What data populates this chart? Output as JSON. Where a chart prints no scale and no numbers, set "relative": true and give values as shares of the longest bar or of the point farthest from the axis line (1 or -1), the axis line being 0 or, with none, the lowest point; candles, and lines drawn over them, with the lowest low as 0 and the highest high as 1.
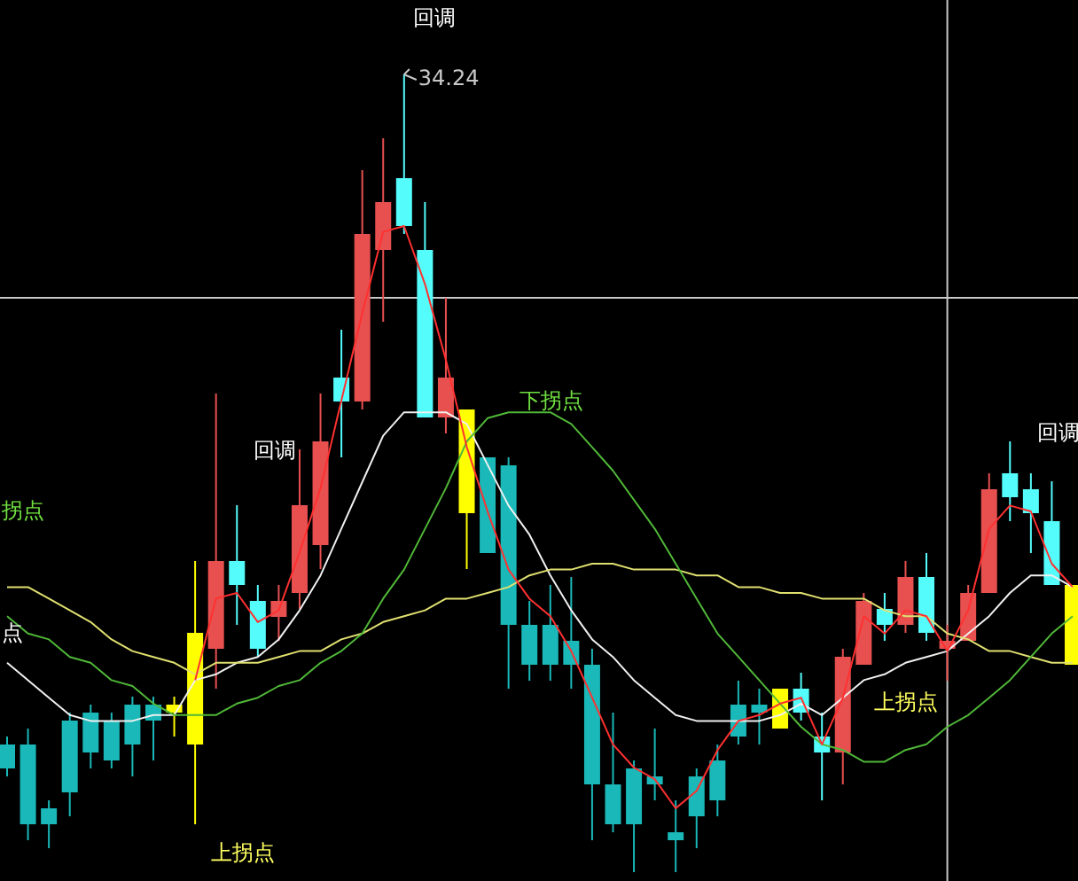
{
  "chart_data": [
    {
      "type": "candlestick",
      "relative": true,
      "categories": [
        null,
        null,
        null,
        null,
        null,
        null,
        null,
        null,
        null,
        null,
        null,
        null,
        null,
        null,
        null,
        null,
        null,
        null,
        null,
        null,
        null,
        null,
        null,
        null,
        null,
        null,
        null,
        null,
        null,
        null,
        null,
        null,
        null,
        null,
        null,
        null,
        null,
        null,
        null,
        null,
        null,
        null,
        null,
        null,
        null,
        null,
        null,
        null,
        null,
        null,
        null,
        null
      ],
      "ohlc": [
        [
          0.16,
          0.17,
          0.12,
          0.13
        ],
        [
          0.16,
          0.18,
          0.04,
          0.06
        ],
        [
          0.08,
          0.09,
          0.03,
          0.06
        ],
        [
          0.19,
          0.2,
          0.07,
          0.1
        ],
        [
          0.2,
          0.21,
          0.13,
          0.15
        ],
        [
          0.19,
          0.2,
          0.13,
          0.14
        ],
        [
          0.21,
          0.22,
          0.12,
          0.16
        ],
        [
          0.21,
          0.22,
          0.14,
          0.19
        ],
        [
          0.21,
          0.22,
          0.17,
          0.2
        ],
        [
          0.3,
          0.39,
          0.06,
          0.16
        ],
        [
          0.28,
          0.6,
          0.23,
          0.39
        ],
        [
          0.39,
          0.46,
          0.31,
          0.36
        ],
        [
          0.34,
          0.36,
          0.27,
          0.28
        ],
        [
          0.32,
          0.36,
          0.29,
          0.34
        ],
        [
          0.35,
          0.53,
          0.33,
          0.46
        ],
        [
          0.41,
          0.6,
          0.38,
          0.54
        ],
        [
          0.62,
          0.68,
          0.52,
          0.59
        ],
        [
          0.59,
          0.88,
          0.58,
          0.8
        ],
        [
          0.78,
          0.92,
          0.69,
          0.84
        ],
        [
          0.87,
          1,
          0.8,
          0.81
        ],
        [
          0.78,
          0.84,
          0.57,
          0.57
        ],
        [
          0.57,
          0.72,
          0.55,
          0.62
        ],
        [
          0.58,
          0.58,
          0.38,
          0.45
        ],
        [
          0.52,
          0.52,
          0.4,
          0.4
        ],
        [
          0.51,
          0.52,
          0.23,
          0.31
        ],
        [
          0.31,
          0.34,
          0.24,
          0.26
        ],
        [
          0.31,
          0.36,
          0.24,
          0.26
        ],
        [
          0.29,
          0.37,
          0.23,
          0.26
        ],
        [
          0.26,
          0.28,
          0.04,
          0.11
        ],
        [
          0.11,
          0.2,
          0.05,
          0.06
        ],
        [
          0.13,
          0.14,
          0,
          0.06
        ],
        [
          0.12,
          0.18,
          0.09,
          0.11
        ],
        [
          0.05,
          0.09,
          0,
          0.04
        ],
        [
          0.12,
          0.13,
          0.03,
          0.07
        ],
        [
          0.14,
          0.16,
          0.07,
          0.09
        ],
        [
          0.21,
          0.24,
          0.16,
          0.17
        ],
        [
          0.21,
          0.23,
          0.16,
          0.2
        ],
        [
          0.23,
          0.23,
          0.18,
          0.18
        ],
        [
          0.23,
          0.25,
          0.19,
          0.2
        ],
        [
          0.17,
          0.2,
          0.09,
          0.15
        ],
        [
          0.15,
          0.28,
          0.11,
          0.27
        ],
        [
          0.26,
          0.35,
          0.26,
          0.34
        ],
        [
          0.33,
          0.35,
          0.29,
          0.31
        ],
        [
          0.31,
          0.39,
          0.3,
          0.37
        ],
        [
          0.37,
          0.4,
          0.29,
          0.3
        ],
        [
          0.28,
          0.31,
          0.24,
          0.29
        ],
        [
          0.29,
          0.36,
          0.29,
          0.35
        ],
        [
          0.35,
          0.5,
          0.35,
          0.48
        ],
        [
          0.5,
          0.54,
          0.44,
          0.47
        ],
        [
          0.48,
          0.5,
          0.4,
          0.45
        ],
        [
          0.44,
          0.49,
          0.36,
          0.36
        ],
        [
          0.36,
          0.36,
          0.26,
          0.26
        ]
      ],
      "colors": [
        "#1ab8b8",
        "#1ab8b8",
        "#1ab8b8",
        "#1ab8b8",
        "#1ab8b8",
        "#1ab8b8",
        "#1ab8b8",
        "#1ab8b8",
        "#ffff00",
        "#ffff00",
        "#e85050",
        "#54fcfc",
        "#54fcfc",
        "#e85050",
        "#e85050",
        "#e85050",
        "#54fcfc",
        "#e85050",
        "#e85050",
        "#54fcfc",
        "#54fcfc",
        "#e85050",
        "#ffff00",
        "#1ab8b8",
        "#1ab8b8",
        "#1ab8b8",
        "#1ab8b8",
        "#1ab8b8",
        "#1ab8b8",
        "#1ab8b8",
        "#1ab8b8",
        "#1ab8b8",
        "#1ab8b8",
        "#1ab8b8",
        "#1ab8b8",
        "#1ab8b8",
        "#1ab8b8",
        "#ffff00",
        "#54fcfc",
        "#54fcfc",
        "#e85050",
        "#e85050",
        "#54fcfc",
        "#e85050",
        "#54fcfc",
        "#e85050",
        "#e85050",
        "#e85050",
        "#54fcfc",
        "#54fcfc",
        "#54fcfc",
        "#ffff00"
      ],
      "ref_lines": [
        {
          "axis": "y",
          "value": 0.72,
          "color": "#c8c8c8"
        }
      ],
      "annotations": [
        "34.24",
        "回调",
        "回调",
        "回调",
        "下拐点",
        "拐点",
        "点",
        "上拐点",
        "上拐点"
      ]
    },
    {
      "type": "line",
      "relative": true,
      "categories": [
        null,
        null,
        null,
        null,
        null,
        null,
        null,
        null,
        null,
        null,
        null,
        null,
        null,
        null,
        null,
        null,
        null,
        null,
        null,
        null,
        null,
        null,
        null,
        null,
        null,
        null,
        null,
        null,
        null,
        null,
        null,
        null,
        null,
        null,
        null,
        null,
        null,
        null,
        null,
        null,
        null,
        null,
        null,
        null,
        null,
        null,
        null,
        null,
        null,
        null,
        null,
        null
      ],
      "series": [
        {
          "color": "#f0f0f0",
          "values": [
            0.25,
            0.22,
            0.19,
            0.16,
            0.15,
            0.15,
            0.15,
            0.16,
            0.16,
            0.22,
            0.23,
            0.25,
            0.26,
            0.29,
            0.34,
            0.4,
            0.48,
            0.56,
            0.64,
            0.68,
            0.68,
            0.68,
            0.66,
            0.59,
            0.52,
            0.47,
            0.4,
            0.34,
            0.29,
            0.26,
            0.22,
            0.19,
            0.16,
            0.15,
            0.15,
            0.15,
            0.15,
            0.16,
            0.18,
            0.16,
            0.19,
            0.22,
            0.23,
            0.25,
            0.26,
            0.27,
            0.3,
            0.33,
            0.37,
            0.4,
            0.4,
            0.38
          ]
        },
        {
          "color": "#e0e070",
          "values": [
            0.38,
            0.38,
            0.36,
            0.34,
            0.32,
            0.29,
            0.27,
            0.26,
            0.25,
            0.23,
            0.25,
            0.25,
            0.25,
            0.26,
            0.27,
            0.27,
            0.29,
            0.3,
            0.32,
            0.33,
            0.34,
            0.36,
            0.36,
            0.37,
            0.38,
            0.4,
            0.41,
            0.41,
            0.42,
            0.42,
            0.41,
            0.41,
            0.41,
            0.4,
            0.4,
            0.38,
            0.38,
            0.37,
            0.37,
            0.36,
            0.36,
            0.36,
            0.34,
            0.33,
            0.33,
            0.3,
            0.29,
            0.27,
            0.27,
            0.26,
            0.25,
            0.25
          ]
        },
        {
          "color": "#50b838",
          "values": [
            0.33,
            0.3,
            0.29,
            0.26,
            0.25,
            0.22,
            0.21,
            0.18,
            0.16,
            0.16,
            0.16,
            0.18,
            0.19,
            0.21,
            0.22,
            0.25,
            0.27,
            0.3,
            0.36,
            0.41,
            0.48,
            0.55,
            0.63,
            0.67,
            0.68,
            0.68,
            0.68,
            0.66,
            0.62,
            0.58,
            0.53,
            0.48,
            0.42,
            0.36,
            0.3,
            0.26,
            0.22,
            0.18,
            0.14,
            0.11,
            0.1,
            0.08,
            0.08,
            0.1,
            0.11,
            0.14,
            0.16,
            0.19,
            0.22,
            0.26,
            0.3,
            0.33
          ]
        },
        {
          "color": "#ff3030",
          "values": [
            null,
            null,
            null,
            null,
            null,
            null,
            null,
            null,
            null,
            0.22,
            0.36,
            0.37,
            0.32,
            0.34,
            0.44,
            0.55,
            0.7,
            0.85,
            0.99,
            1,
            0.9,
            0.77,
            0.62,
            0.51,
            0.41,
            0.36,
            0.33,
            0.27,
            0.19,
            0.11,
            0.07,
            0.05,
            0,
            0.03,
            0.1,
            0.15,
            0.16,
            0.18,
            0.19,
            0.11,
            0.19,
            0.33,
            0.3,
            0.34,
            0.33,
            0.27,
            0.34,
            0.48,
            0.52,
            0.51,
            0.42,
            0.38
          ]
        }
      ]
    }
  ]
}
